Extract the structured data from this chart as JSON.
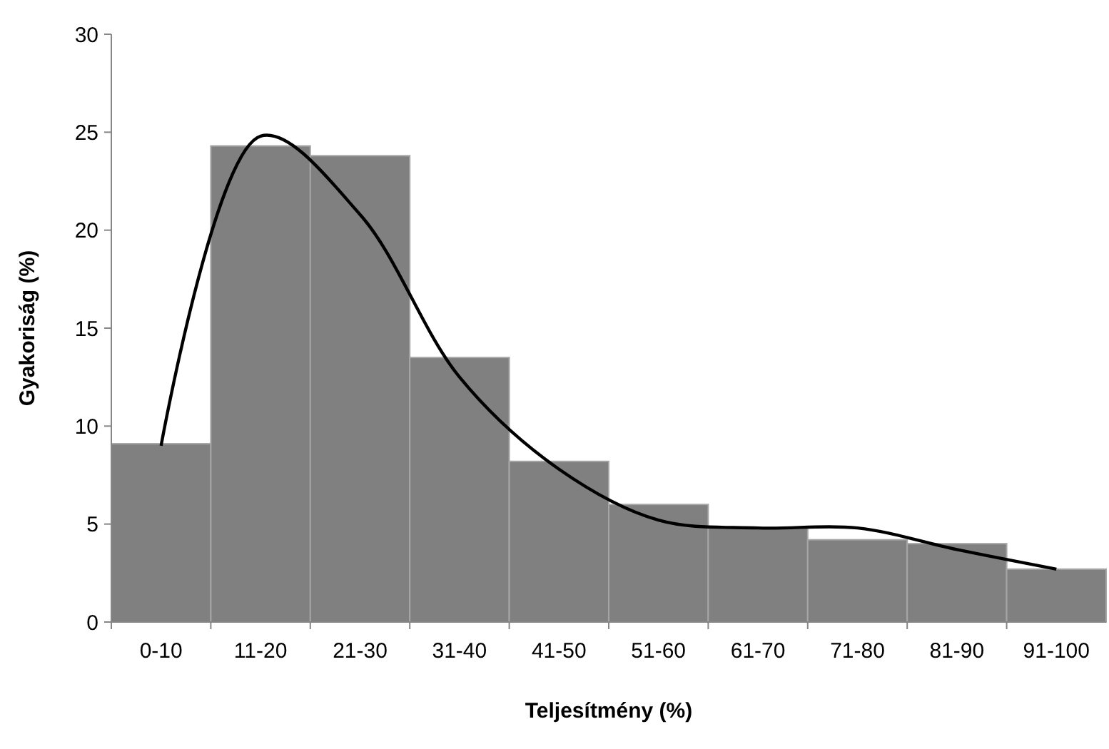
{
  "chart_data": {
    "type": "bar",
    "xlabel": "Teljesítmény (%)",
    "ylabel": "Gyakoriság (%)",
    "categories": [
      "0-10",
      "11-20",
      "21-30",
      "31-40",
      "41-50",
      "51-60",
      "61-70",
      "71-80",
      "81-90",
      "91-100"
    ],
    "series": [
      {
        "color": "#808080",
        "values": [
          9.1,
          24.3,
          23.8,
          13.5,
          8.2,
          6.0,
          4.8,
          4.2,
          4.0,
          2.7
        ]
      },
      {
        "type": "line",
        "color": "#000000",
        "values": [
          9.0,
          24.8,
          20.8,
          12.5,
          7.8,
          5.2,
          4.8,
          4.8,
          3.7,
          2.7
        ]
      }
    ],
    "ylim": [
      0,
      30
    ],
    "yticks": [
      0,
      5,
      10,
      15,
      20,
      25,
      30
    ],
    "grid": false
  }
}
